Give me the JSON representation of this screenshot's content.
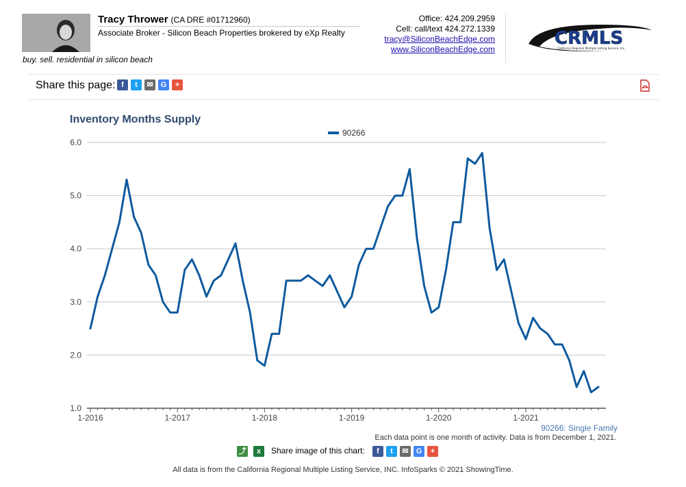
{
  "agent": {
    "name": "Tracy Thrower",
    "dre": "(CA DRE #01712960)",
    "title": "Associate Broker - Silicon Beach Properties brokered by eXp Realty",
    "tagline": "buy. sell. residential in silicon beach",
    "office": "Office: 424.209.2959",
    "cell": "Cell: call/text 424.272.1339",
    "email": "tracy@SiliconBeachEdge.com",
    "website": "www.SiliconBeachEdge.com"
  },
  "logo": {
    "text": "CRMLS",
    "subtitle": "California Regional Multiple Listing Service, Inc."
  },
  "share_bar": {
    "label": "Share this page:"
  },
  "share_image": {
    "label": "Share image of this chart:"
  },
  "series_caption": "90266: Single Family",
  "note": "Each data point is one month of activity. Data is from December 1, 2021.",
  "footer": "All data is from the California Regional Multiple Listing Service, INC. InfoSparks © 2021 ShowingTime.",
  "colors": {
    "series": "#0e5a9e",
    "title": "#2e4a6e",
    "grid": "#c6c6c6"
  },
  "chart_data": {
    "type": "line",
    "title": "Inventory Months Supply",
    "legend": "top-center",
    "xlabel": "",
    "ylabel": "",
    "ylim": [
      1.0,
      6.0
    ],
    "yticks": [
      "1.0",
      "2.0",
      "3.0",
      "4.0",
      "5.0",
      "6.0"
    ],
    "xticks": [
      "1-2016",
      "1-2017",
      "1-2018",
      "1-2019",
      "1-2020",
      "1-2021"
    ],
    "grid": true,
    "series": [
      {
        "name": "90266",
        "start": "2016-01",
        "values": [
          2.5,
          3.1,
          3.5,
          4.0,
          4.5,
          5.3,
          4.6,
          4.3,
          3.7,
          3.5,
          3.0,
          2.8,
          2.8,
          3.6,
          3.8,
          3.5,
          3.1,
          3.4,
          3.5,
          3.8,
          4.1,
          3.4,
          2.8,
          1.9,
          1.8,
          2.4,
          2.4,
          3.4,
          3.4,
          3.4,
          3.5,
          3.4,
          3.3,
          3.5,
          3.2,
          2.9,
          3.1,
          3.7,
          4.0,
          4.0,
          4.4,
          4.8,
          5.0,
          5.0,
          5.5,
          4.2,
          3.3,
          2.8,
          2.9,
          3.6,
          4.5,
          4.5,
          5.7,
          5.6,
          5.8,
          4.4,
          3.6,
          3.8,
          3.2,
          2.6,
          2.3,
          2.7,
          2.5,
          2.4,
          2.2,
          2.2,
          1.9,
          1.4,
          1.7,
          1.3,
          1.4
        ]
      }
    ]
  }
}
